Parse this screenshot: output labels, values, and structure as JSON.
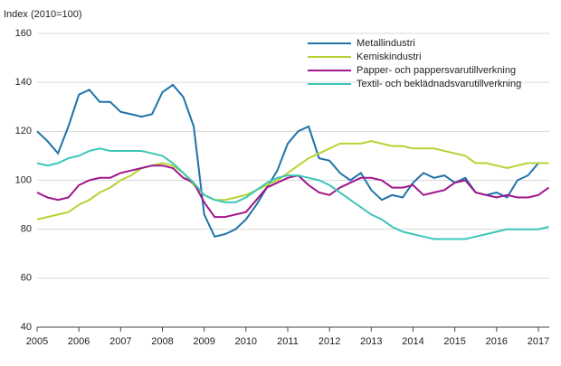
{
  "chart_data": {
    "type": "line",
    "y_label": "Index (2010=100)",
    "x": [
      2005,
      2005.25,
      2005.5,
      2005.75,
      2006,
      2006.25,
      2006.5,
      2006.75,
      2007,
      2007.25,
      2007.5,
      2007.75,
      2008,
      2008.25,
      2008.5,
      2008.75,
      2009,
      2009.25,
      2009.5,
      2009.75,
      2010,
      2010.25,
      2010.5,
      2010.75,
      2011,
      2011.25,
      2011.5,
      2011.75,
      2012,
      2012.25,
      2012.5,
      2012.75,
      2013,
      2013.25,
      2013.5,
      2013.75,
      2014,
      2014.25,
      2014.5,
      2014.75,
      2015,
      2015.25,
      2015.5,
      2015.75,
      2016,
      2016.25,
      2016.5,
      2016.75,
      2017,
      2017.25
    ],
    "xlim": [
      2005,
      2017.26
    ],
    "xticks": [
      2005,
      2006,
      2007,
      2008,
      2009,
      2010,
      2011,
      2012,
      2013,
      2014,
      2015,
      2016,
      2017
    ],
    "ylim": [
      40,
      160
    ],
    "yticks": [
      40,
      60,
      80,
      100,
      120,
      140,
      160
    ],
    "grid": true,
    "series": [
      {
        "name": "Metallindustri",
        "color": "#1f72a8",
        "values": [
          120,
          116,
          111,
          122,
          135,
          137,
          132,
          132,
          128,
          127,
          126,
          127,
          136,
          139,
          134,
          122,
          86,
          77,
          78,
          80,
          84,
          90,
          97,
          104,
          115,
          120,
          122,
          109,
          108,
          103,
          100,
          103,
          96,
          92,
          94,
          93,
          99,
          103,
          101,
          102,
          99,
          101,
          95,
          94,
          95,
          93,
          100,
          102,
          107,
          107
        ]
      },
      {
        "name": "Kemiskindustri",
        "color": "#b5d334",
        "values": [
          84,
          85,
          86,
          87,
          90,
          92,
          95,
          97,
          100,
          102,
          105,
          106,
          107,
          106,
          103,
          98,
          94,
          92,
          92,
          93,
          94,
          96,
          98,
          100,
          103,
          106,
          109,
          111,
          113,
          115,
          115,
          115,
          116,
          115,
          114,
          114,
          113,
          113,
          113,
          112,
          111,
          110,
          107,
          107,
          106,
          105,
          106,
          107,
          107,
          107
        ]
      },
      {
        "name": "Papper- och pappersvarutillverkning",
        "color": "#a0168c",
        "values": [
          95,
          93,
          92,
          93,
          98,
          100,
          101,
          101,
          103,
          104,
          105,
          106,
          106,
          105,
          101,
          99,
          91,
          85,
          85,
          86,
          87,
          92,
          97,
          99,
          101,
          102,
          98,
          95,
          94,
          97,
          99,
          101,
          101,
          100,
          97,
          97,
          98,
          94,
          95,
          96,
          99,
          100,
          95,
          94,
          93,
          94,
          93,
          93,
          94,
          97
        ]
      },
      {
        "name": "Textil- och beklädnadsvarutillverkning",
        "color": "#3cc7b8",
        "values": [
          107,
          106,
          107,
          109,
          110,
          112,
          113,
          112,
          112,
          112,
          112,
          111,
          110,
          107,
          103,
          99,
          94,
          92,
          91,
          91,
          93,
          96,
          99,
          101,
          102,
          102,
          101,
          100,
          98,
          95,
          92,
          89,
          86,
          84,
          81,
          79,
          78,
          77,
          76,
          76,
          76,
          76,
          77,
          78,
          79,
          80,
          80,
          80,
          80,
          81
        ]
      }
    ]
  }
}
